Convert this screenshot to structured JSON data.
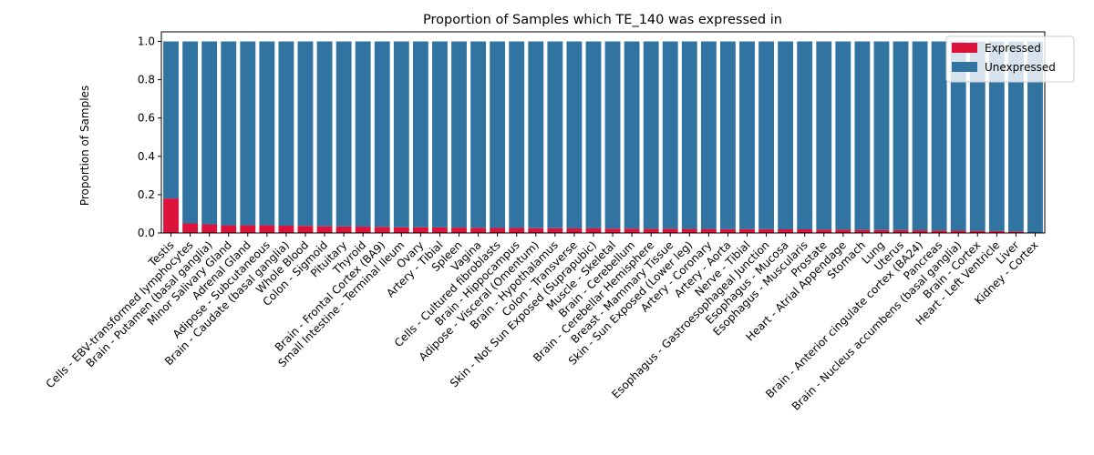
{
  "chart_data": {
    "type": "bar",
    "stacked": true,
    "title": "Proportion of Samples which TE_140 was expressed in",
    "xlabel": "",
    "ylabel": "Proportion of Samples",
    "ylim": [
      0,
      1.05
    ],
    "yticks": [
      "0.0",
      "0.2",
      "0.4",
      "0.6",
      "0.8",
      "1.0"
    ],
    "grid": false,
    "legend_position": "top-right",
    "categories": [
      "Testis",
      "Cells - EBV-transformed lymphocytes",
      "Brain - Putamen (basal ganglia)",
      "Minor Salivary Gland",
      "Adrenal Gland",
      "Adipose - Subcutaneous",
      "Brain - Caudate (basal ganglia)",
      "Whole Blood",
      "Colon - Sigmoid",
      "Pituitary",
      "Thyroid",
      "Brain - Frontal Cortex (BA9)",
      "Small Intestine - Terminal Ileum",
      "Ovary",
      "Artery - Tibial",
      "Spleen",
      "Vagina",
      "Cells - Cultured fibroblasts",
      "Brain - Hippocampus",
      "Adipose - Visceral (Omentum)",
      "Brain - Hypothalamus",
      "Colon - Transverse",
      "Skin - Not Sun Exposed (Suprapubic)",
      "Muscle - Skeletal",
      "Brain - Cerebellum",
      "Brain - Cerebellar Hemisphere",
      "Breast - Mammary Tissue",
      "Skin - Sun Exposed (Lower leg)",
      "Artery - Coronary",
      "Artery - Aorta",
      "Nerve - Tibial",
      "Esophagus - Gastroesophageal Junction",
      "Esophagus - Mucosa",
      "Esophagus - Muscularis",
      "Prostate",
      "Heart - Atrial Appendage",
      "Stomach",
      "Lung",
      "Uterus",
      "Brain - Anterior cingulate cortex (BA24)",
      "Pancreas",
      "Brain - Nucleus accumbens (basal ganglia)",
      "Brain - Cortex",
      "Heart - Left Ventricle",
      "Liver",
      "Kidney - Cortex"
    ],
    "series": [
      {
        "name": "Expressed",
        "color": "#dc143c",
        "values": [
          0.18,
          0.05,
          0.045,
          0.04,
          0.04,
          0.04,
          0.038,
          0.037,
          0.035,
          0.034,
          0.033,
          0.032,
          0.03,
          0.03,
          0.029,
          0.028,
          0.027,
          0.026,
          0.026,
          0.025,
          0.025,
          0.024,
          0.024,
          0.023,
          0.023,
          0.022,
          0.022,
          0.021,
          0.021,
          0.02,
          0.02,
          0.02,
          0.019,
          0.019,
          0.018,
          0.017,
          0.016,
          0.015,
          0.015,
          0.014,
          0.013,
          0.012,
          0.011,
          0.01,
          0.008,
          0.0
        ]
      },
      {
        "name": "Unexpressed",
        "color": "#3274a1",
        "values": [
          0.82,
          0.95,
          0.955,
          0.96,
          0.96,
          0.96,
          0.962,
          0.963,
          0.965,
          0.966,
          0.967,
          0.968,
          0.97,
          0.97,
          0.971,
          0.972,
          0.973,
          0.974,
          0.974,
          0.975,
          0.975,
          0.976,
          0.976,
          0.977,
          0.977,
          0.978,
          0.978,
          0.979,
          0.979,
          0.98,
          0.98,
          0.98,
          0.981,
          0.981,
          0.982,
          0.983,
          0.984,
          0.985,
          0.985,
          0.986,
          0.987,
          0.988,
          0.989,
          0.99,
          0.992,
          1.0
        ]
      }
    ]
  }
}
